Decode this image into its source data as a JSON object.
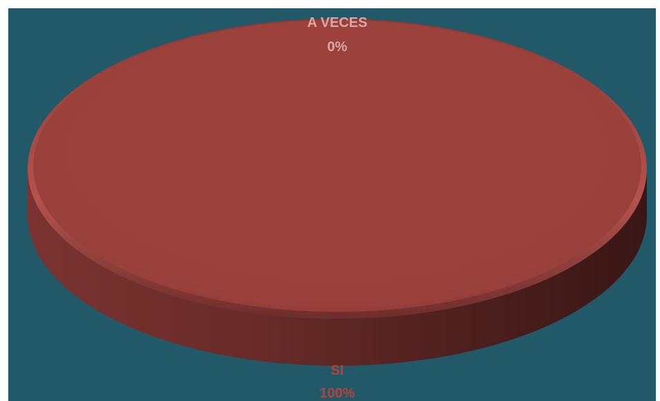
{
  "colors": {
    "background": "#215968",
    "slice_si": "#9c413c",
    "label_a_veces": "#d9a8a6",
    "label_si": "#b8403b"
  },
  "chart_data": {
    "type": "pie",
    "style": "3d",
    "labels": [
      {
        "category": "A VECES",
        "value_label": "0%"
      },
      {
        "category": "SI",
        "value_label": "100%"
      }
    ],
    "categories": [
      "A VECES",
      "SI"
    ],
    "values": [
      0,
      100
    ],
    "legend": "none"
  }
}
